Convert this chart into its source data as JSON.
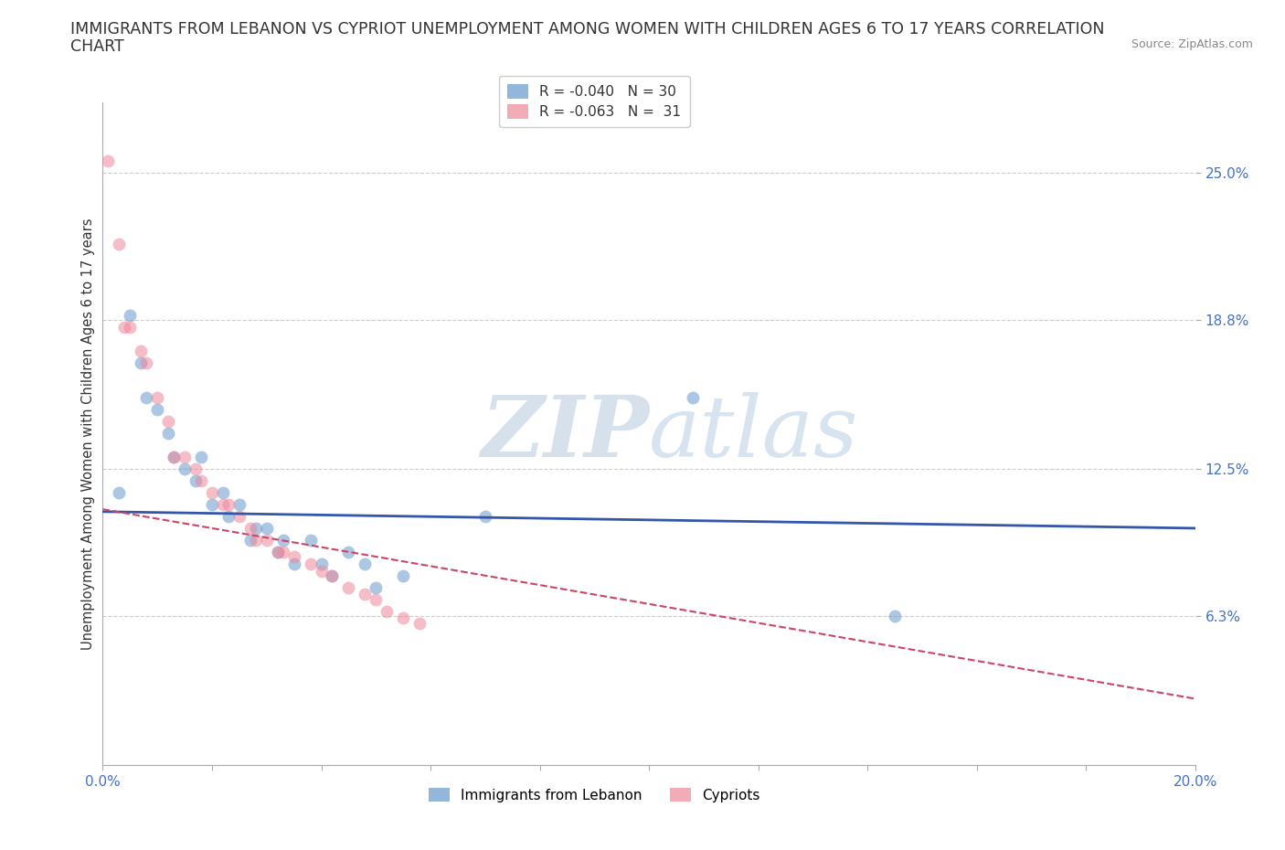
{
  "title_line1": "IMMIGRANTS FROM LEBANON VS CYPRIOT UNEMPLOYMENT AMONG WOMEN WITH CHILDREN AGES 6 TO 17 YEARS CORRELATION",
  "title_line2": "CHART",
  "source": "Source: ZipAtlas.com",
  "ylabel": "Unemployment Among Women with Children Ages 6 to 17 years",
  "xlim": [
    0.0,
    0.2
  ],
  "ylim": [
    0.0,
    0.28
  ],
  "xticks": [
    0.0,
    0.02,
    0.04,
    0.06,
    0.08,
    0.1,
    0.12,
    0.14,
    0.16,
    0.18,
    0.2
  ],
  "xticklabels": [
    "0.0%",
    "",
    "",
    "",
    "",
    "",
    "",
    "",
    "",
    "",
    "20.0%"
  ],
  "ytick_positions": [
    0.063,
    0.125,
    0.188,
    0.25
  ],
  "ytick_labels": [
    "6.3%",
    "12.5%",
    "18.8%",
    "25.0%"
  ],
  "legend_entries": [
    {
      "label": "R = -0.040   N = 30",
      "color": "#a8c4e0"
    },
    {
      "label": "R = -0.063   N =  31",
      "color": "#f4a0b0"
    }
  ],
  "legend_labels_bottom": [
    "Immigrants from Lebanon",
    "Cypriots"
  ],
  "blue_scatter_x": [
    0.003,
    0.005,
    0.007,
    0.008,
    0.01,
    0.012,
    0.013,
    0.015,
    0.017,
    0.018,
    0.02,
    0.022,
    0.023,
    0.025,
    0.027,
    0.028,
    0.03,
    0.032,
    0.033,
    0.035,
    0.038,
    0.04,
    0.042,
    0.045,
    0.048,
    0.05,
    0.055,
    0.07,
    0.108,
    0.145
  ],
  "blue_scatter_y": [
    0.115,
    0.19,
    0.17,
    0.155,
    0.15,
    0.14,
    0.13,
    0.125,
    0.12,
    0.13,
    0.11,
    0.115,
    0.105,
    0.11,
    0.095,
    0.1,
    0.1,
    0.09,
    0.095,
    0.085,
    0.095,
    0.085,
    0.08,
    0.09,
    0.085,
    0.075,
    0.08,
    0.105,
    0.155,
    0.063
  ],
  "pink_scatter_x": [
    0.001,
    0.003,
    0.004,
    0.005,
    0.007,
    0.008,
    0.01,
    0.012,
    0.013,
    0.015,
    0.017,
    0.018,
    0.02,
    0.022,
    0.023,
    0.025,
    0.027,
    0.028,
    0.03,
    0.032,
    0.033,
    0.035,
    0.038,
    0.04,
    0.042,
    0.045,
    0.048,
    0.05,
    0.052,
    0.055,
    0.058
  ],
  "pink_scatter_y": [
    0.255,
    0.22,
    0.185,
    0.185,
    0.175,
    0.17,
    0.155,
    0.145,
    0.13,
    0.13,
    0.125,
    0.12,
    0.115,
    0.11,
    0.11,
    0.105,
    0.1,
    0.095,
    0.095,
    0.09,
    0.09,
    0.088,
    0.085,
    0.082,
    0.08,
    0.075,
    0.072,
    0.07,
    0.065,
    0.062,
    0.06
  ],
  "blue_line_color": "#3355aa",
  "pink_line_color": "#cc4466",
  "blue_scatter_color": "#6699cc",
  "pink_scatter_color": "#ee8899",
  "blue_line_x": [
    0.0,
    0.2
  ],
  "blue_line_y": [
    0.107,
    0.1
  ],
  "pink_line_x": [
    0.0,
    0.2
  ],
  "pink_line_y": [
    0.108,
    0.028
  ],
  "scatter_size": 100,
  "scatter_alpha": 0.55,
  "grid_color": "#cccccc",
  "background_color": "#ffffff",
  "title_fontsize": 12.5,
  "axis_label_fontsize": 10.5,
  "tick_fontsize": 11,
  "legend_fontsize": 11
}
